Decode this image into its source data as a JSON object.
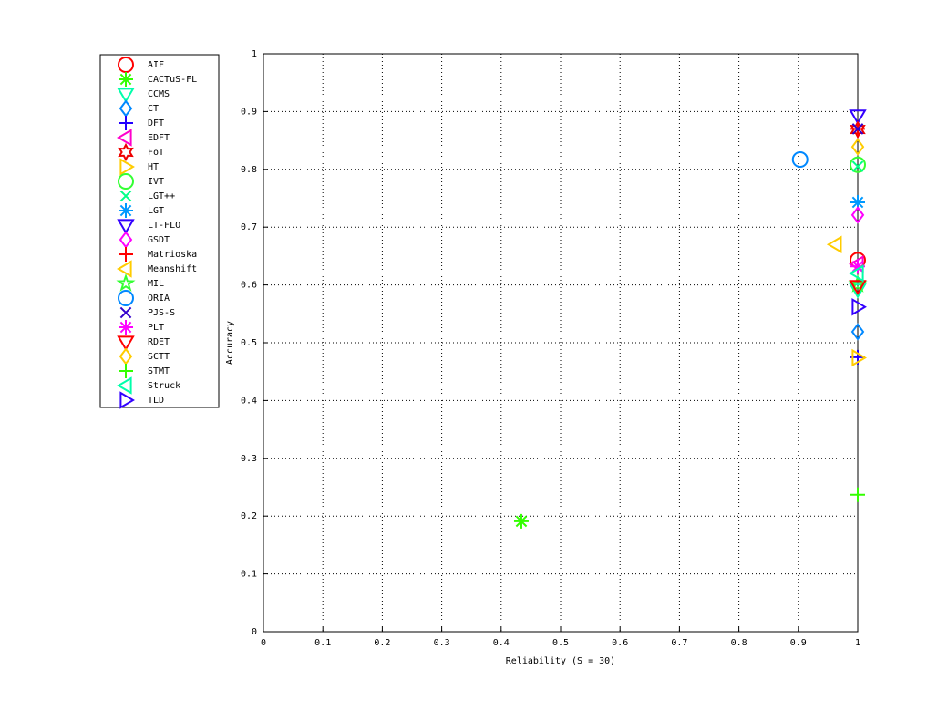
{
  "chart_data": {
    "type": "scatter",
    "x_label": "Reliability (S = 30)",
    "y_label": "Accuracy",
    "xlim": [
      0,
      1
    ],
    "ylim": [
      0,
      1
    ],
    "xticks": [
      0,
      0.1,
      0.2,
      0.3,
      0.4,
      0.5,
      0.6,
      0.7,
      0.8,
      0.9,
      1
    ],
    "yticks": [
      0,
      0.1,
      0.2,
      0.3,
      0.4,
      0.5,
      0.6,
      0.7,
      0.8,
      0.9,
      1
    ],
    "grid": true,
    "legend": "outside-left",
    "series": [
      {
        "name": "AIF",
        "color": "#ff0000",
        "marker": "o",
        "x": [
          1
        ],
        "values": [
          0.643
        ]
      },
      {
        "name": "CACTuS-FL",
        "color": "#33ff00",
        "marker": "*",
        "x": [
          0.434
        ],
        "values": [
          0.191
        ]
      },
      {
        "name": "CCMS",
        "color": "#00ffaa",
        "marker": "v",
        "x": [
          1
        ],
        "values": [
          0.592
        ]
      },
      {
        "name": "CT",
        "color": "#0088ff",
        "marker": "d",
        "x": [
          1
        ],
        "values": [
          0.519
        ]
      },
      {
        "name": "DFT",
        "color": "#2200ff",
        "marker": "+",
        "x": [
          1
        ],
        "values": [
          0.475
        ]
      },
      {
        "name": "EDFT",
        "color": "#ff00cc",
        "marker": "<",
        "x": [
          1
        ],
        "values": [
          0.636
        ]
      },
      {
        "name": "FoT",
        "color": "#ee0000",
        "marker": "h",
        "x": [
          1
        ],
        "values": [
          0.869
        ]
      },
      {
        "name": "HT",
        "color": "#ffcc00",
        "marker": ">",
        "x": [
          1
        ],
        "values": [
          0.474
        ]
      },
      {
        "name": "IVT",
        "color": "#33ff33",
        "marker": "o",
        "x": [
          1
        ],
        "values": [
          0.808
        ]
      },
      {
        "name": "LGT++",
        "color": "#00ff88",
        "marker": "x",
        "x": [
          1
        ],
        "values": [
          0.805
        ]
      },
      {
        "name": "LGT",
        "color": "#0099ff",
        "marker": "*",
        "x": [
          1
        ],
        "values": [
          0.743
        ]
      },
      {
        "name": "LT-FLO",
        "color": "#3300ff",
        "marker": "v",
        "x": [
          1
        ],
        "values": [
          0.893
        ]
      },
      {
        "name": "GSDT",
        "color": "#ff00ff",
        "marker": "d",
        "x": [
          1
        ],
        "values": [
          0.721
        ]
      },
      {
        "name": "Matrioska",
        "color": "#ff0000",
        "marker": "+",
        "x": [
          1
        ],
        "values": [
          0.87
        ]
      },
      {
        "name": "Meanshift",
        "color": "#ffcc00",
        "marker": "<",
        "x": [
          0.963
        ],
        "values": [
          0.67
        ]
      },
      {
        "name": "MIL",
        "color": "#33ff33",
        "marker": "p",
        "x": [
          1
        ],
        "values": [
          0.601
        ]
      },
      {
        "name": "ORIA",
        "color": "#0088ff",
        "marker": "o",
        "x": [
          0.903
        ],
        "values": [
          0.817
        ]
      },
      {
        "name": "PJS-S",
        "color": "#3300cc",
        "marker": "x",
        "x": [
          1
        ],
        "values": [
          0.87
        ]
      },
      {
        "name": "PLT",
        "color": "#ff00ff",
        "marker": "*",
        "x": [
          1
        ],
        "values": [
          0.632
        ]
      },
      {
        "name": "RDET",
        "color": "#ff0000",
        "marker": "v",
        "x": [
          1
        ],
        "values": [
          0.598
        ]
      },
      {
        "name": "SCTT",
        "color": "#ffcc00",
        "marker": "d",
        "x": [
          1
        ],
        "values": [
          0.839
        ]
      },
      {
        "name": "STMT",
        "color": "#33ff00",
        "marker": "+",
        "x": [
          1
        ],
        "values": [
          0.237
        ]
      },
      {
        "name": "Struck",
        "color": "#00ffaa",
        "marker": "<",
        "x": [
          1
        ],
        "values": [
          0.62
        ]
      },
      {
        "name": "TLD",
        "color": "#3300ff",
        "marker": ">",
        "x": [
          1
        ],
        "values": [
          0.562
        ]
      }
    ]
  }
}
